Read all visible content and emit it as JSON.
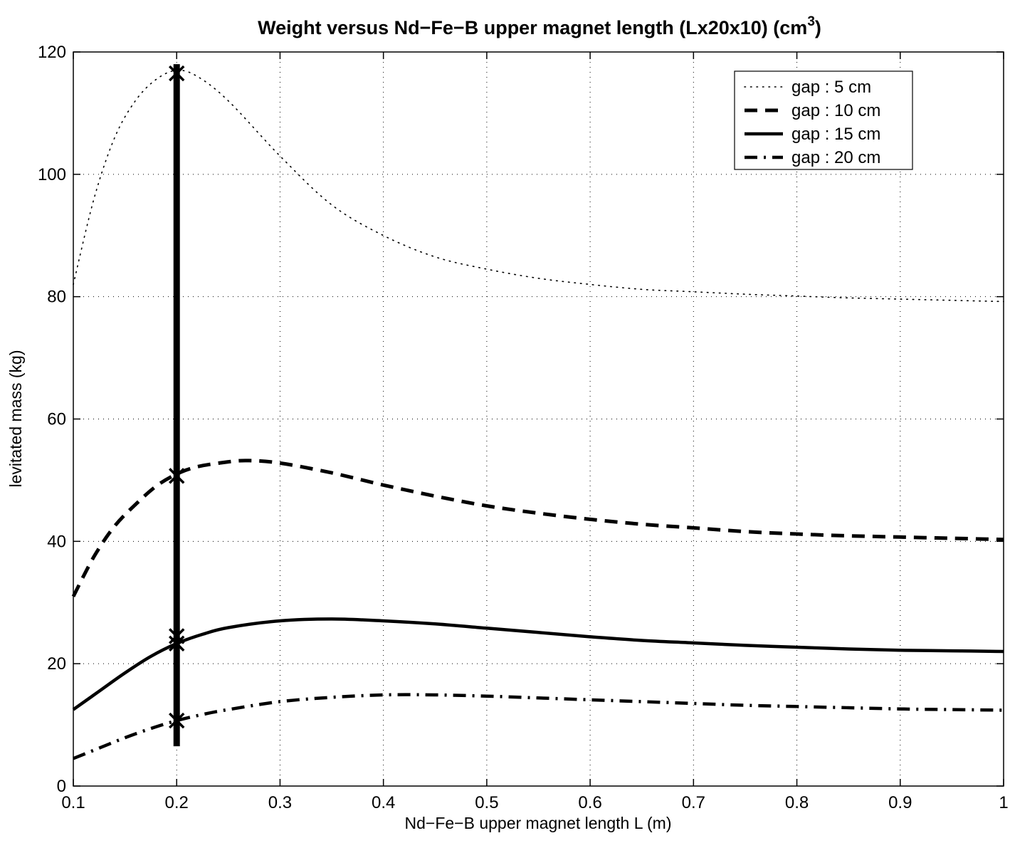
{
  "chart_data": {
    "type": "line",
    "title": "Weight versus Nd−Fe−B upper magnet length (Lx20x10) (cm",
    "title_superscript": "3",
    "title_suffix": ")",
    "xlabel": "Nd−Fe−B upper magnet length L (m)",
    "ylabel": "levitated mass (kg)",
    "xlim": [
      0.1,
      1.0
    ],
    "ylim": [
      0,
      120
    ],
    "xticks": [
      0.1,
      0.2,
      0.3,
      0.4,
      0.5,
      0.6,
      0.7,
      0.8,
      0.9,
      1.0
    ],
    "xtick_labels": [
      "0.1",
      "0.2",
      "0.3",
      "0.4",
      "0.5",
      "0.6",
      "0.7",
      "0.8",
      "0.9",
      "1"
    ],
    "yticks": [
      0,
      20,
      40,
      60,
      80,
      100,
      120
    ],
    "ytick_labels": [
      "0",
      "20",
      "40",
      "60",
      "80",
      "100",
      "120"
    ],
    "grid": true,
    "legend_position": "top-right",
    "series": [
      {
        "name": "gap : 5 cm",
        "style": "dotted",
        "x": [
          0.1,
          0.12,
          0.14,
          0.16,
          0.18,
          0.2,
          0.22,
          0.25,
          0.3,
          0.35,
          0.4,
          0.45,
          0.5,
          0.55,
          0.6,
          0.65,
          0.7,
          0.75,
          0.8,
          0.85,
          0.9,
          0.95,
          1.0
        ],
        "y": [
          82,
          96,
          106,
          112,
          115.5,
          117,
          116,
          112,
          103,
          95,
          90,
          86.5,
          84.5,
          83,
          82,
          81.2,
          80.8,
          80.4,
          80.1,
          79.8,
          79.6,
          79.4,
          79.2
        ]
      },
      {
        "name": "gap : 10 cm",
        "style": "dashed",
        "x": [
          0.1,
          0.12,
          0.14,
          0.16,
          0.18,
          0.2,
          0.22,
          0.25,
          0.27,
          0.3,
          0.35,
          0.4,
          0.45,
          0.5,
          0.55,
          0.6,
          0.65,
          0.7,
          0.75,
          0.8,
          0.85,
          0.9,
          0.95,
          1.0
        ],
        "y": [
          31,
          37.5,
          42.5,
          46,
          49,
          51,
          52.2,
          53,
          53.2,
          52.8,
          51.2,
          49.2,
          47.4,
          45.8,
          44.6,
          43.6,
          42.8,
          42.2,
          41.6,
          41.2,
          40.9,
          40.7,
          40.5,
          40.3
        ]
      },
      {
        "name": "gap : 15 cm",
        "style": "solid",
        "x": [
          0.1,
          0.125,
          0.15,
          0.175,
          0.2,
          0.225,
          0.25,
          0.3,
          0.35,
          0.4,
          0.45,
          0.5,
          0.55,
          0.6,
          0.65,
          0.7,
          0.75,
          0.8,
          0.85,
          0.9,
          0.95,
          1.0
        ],
        "y": [
          12.5,
          15.5,
          18.5,
          21.2,
          23.3,
          24.8,
          25.9,
          27,
          27.3,
          27,
          26.5,
          25.8,
          25.1,
          24.4,
          23.8,
          23.4,
          23,
          22.7,
          22.4,
          22.2,
          22.1,
          22
        ]
      },
      {
        "name": "gap : 20 cm",
        "style": "dashdot",
        "x": [
          0.1,
          0.125,
          0.15,
          0.175,
          0.2,
          0.225,
          0.25,
          0.3,
          0.35,
          0.4,
          0.45,
          0.5,
          0.55,
          0.6,
          0.65,
          0.7,
          0.75,
          0.8,
          0.85,
          0.9,
          0.95,
          1.0
        ],
        "y": [
          4.5,
          6.2,
          7.9,
          9.4,
          10.7,
          11.7,
          12.5,
          13.8,
          14.5,
          14.9,
          14.9,
          14.7,
          14.4,
          14.1,
          13.8,
          13.5,
          13.2,
          13,
          12.8,
          12.6,
          12.5,
          12.4
        ]
      }
    ],
    "vertical_marker": {
      "x": 0.2,
      "y_range": [
        6.5,
        118
      ]
    },
    "markers": [
      {
        "x": 0.2,
        "y": 116.5
      },
      {
        "x": 0.2,
        "y": 50.7
      },
      {
        "x": 0.2,
        "y": 24.5
      },
      {
        "x": 0.2,
        "y": 23.3
      },
      {
        "x": 0.2,
        "y": 10.7
      }
    ]
  }
}
